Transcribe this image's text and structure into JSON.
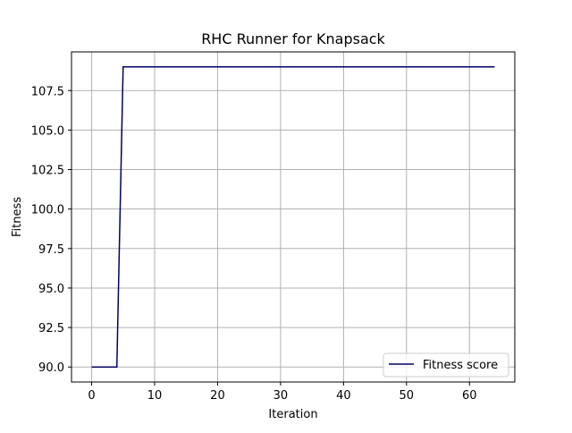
{
  "chart_data": {
    "type": "line",
    "title": "RHC Runner for Knapsack",
    "xlabel": "Iteration",
    "ylabel": "Fitness",
    "xlim": [
      -3.2,
      67.2
    ],
    "ylim": [
      89.05,
      109.95
    ],
    "xticks": [
      0,
      10,
      20,
      30,
      40,
      50,
      60
    ],
    "yticks": [
      90.0,
      92.5,
      95.0,
      97.5,
      100.0,
      102.5,
      105.0,
      107.5
    ],
    "grid": true,
    "legend_position": "lower-right",
    "series": [
      {
        "name": "Fitness score",
        "color": "#000066",
        "x": [
          0,
          1,
          2,
          3,
          4,
          5,
          64
        ],
        "y": [
          90.0,
          90.0,
          90.0,
          90.0,
          90.0,
          109.0,
          109.0
        ]
      }
    ]
  }
}
